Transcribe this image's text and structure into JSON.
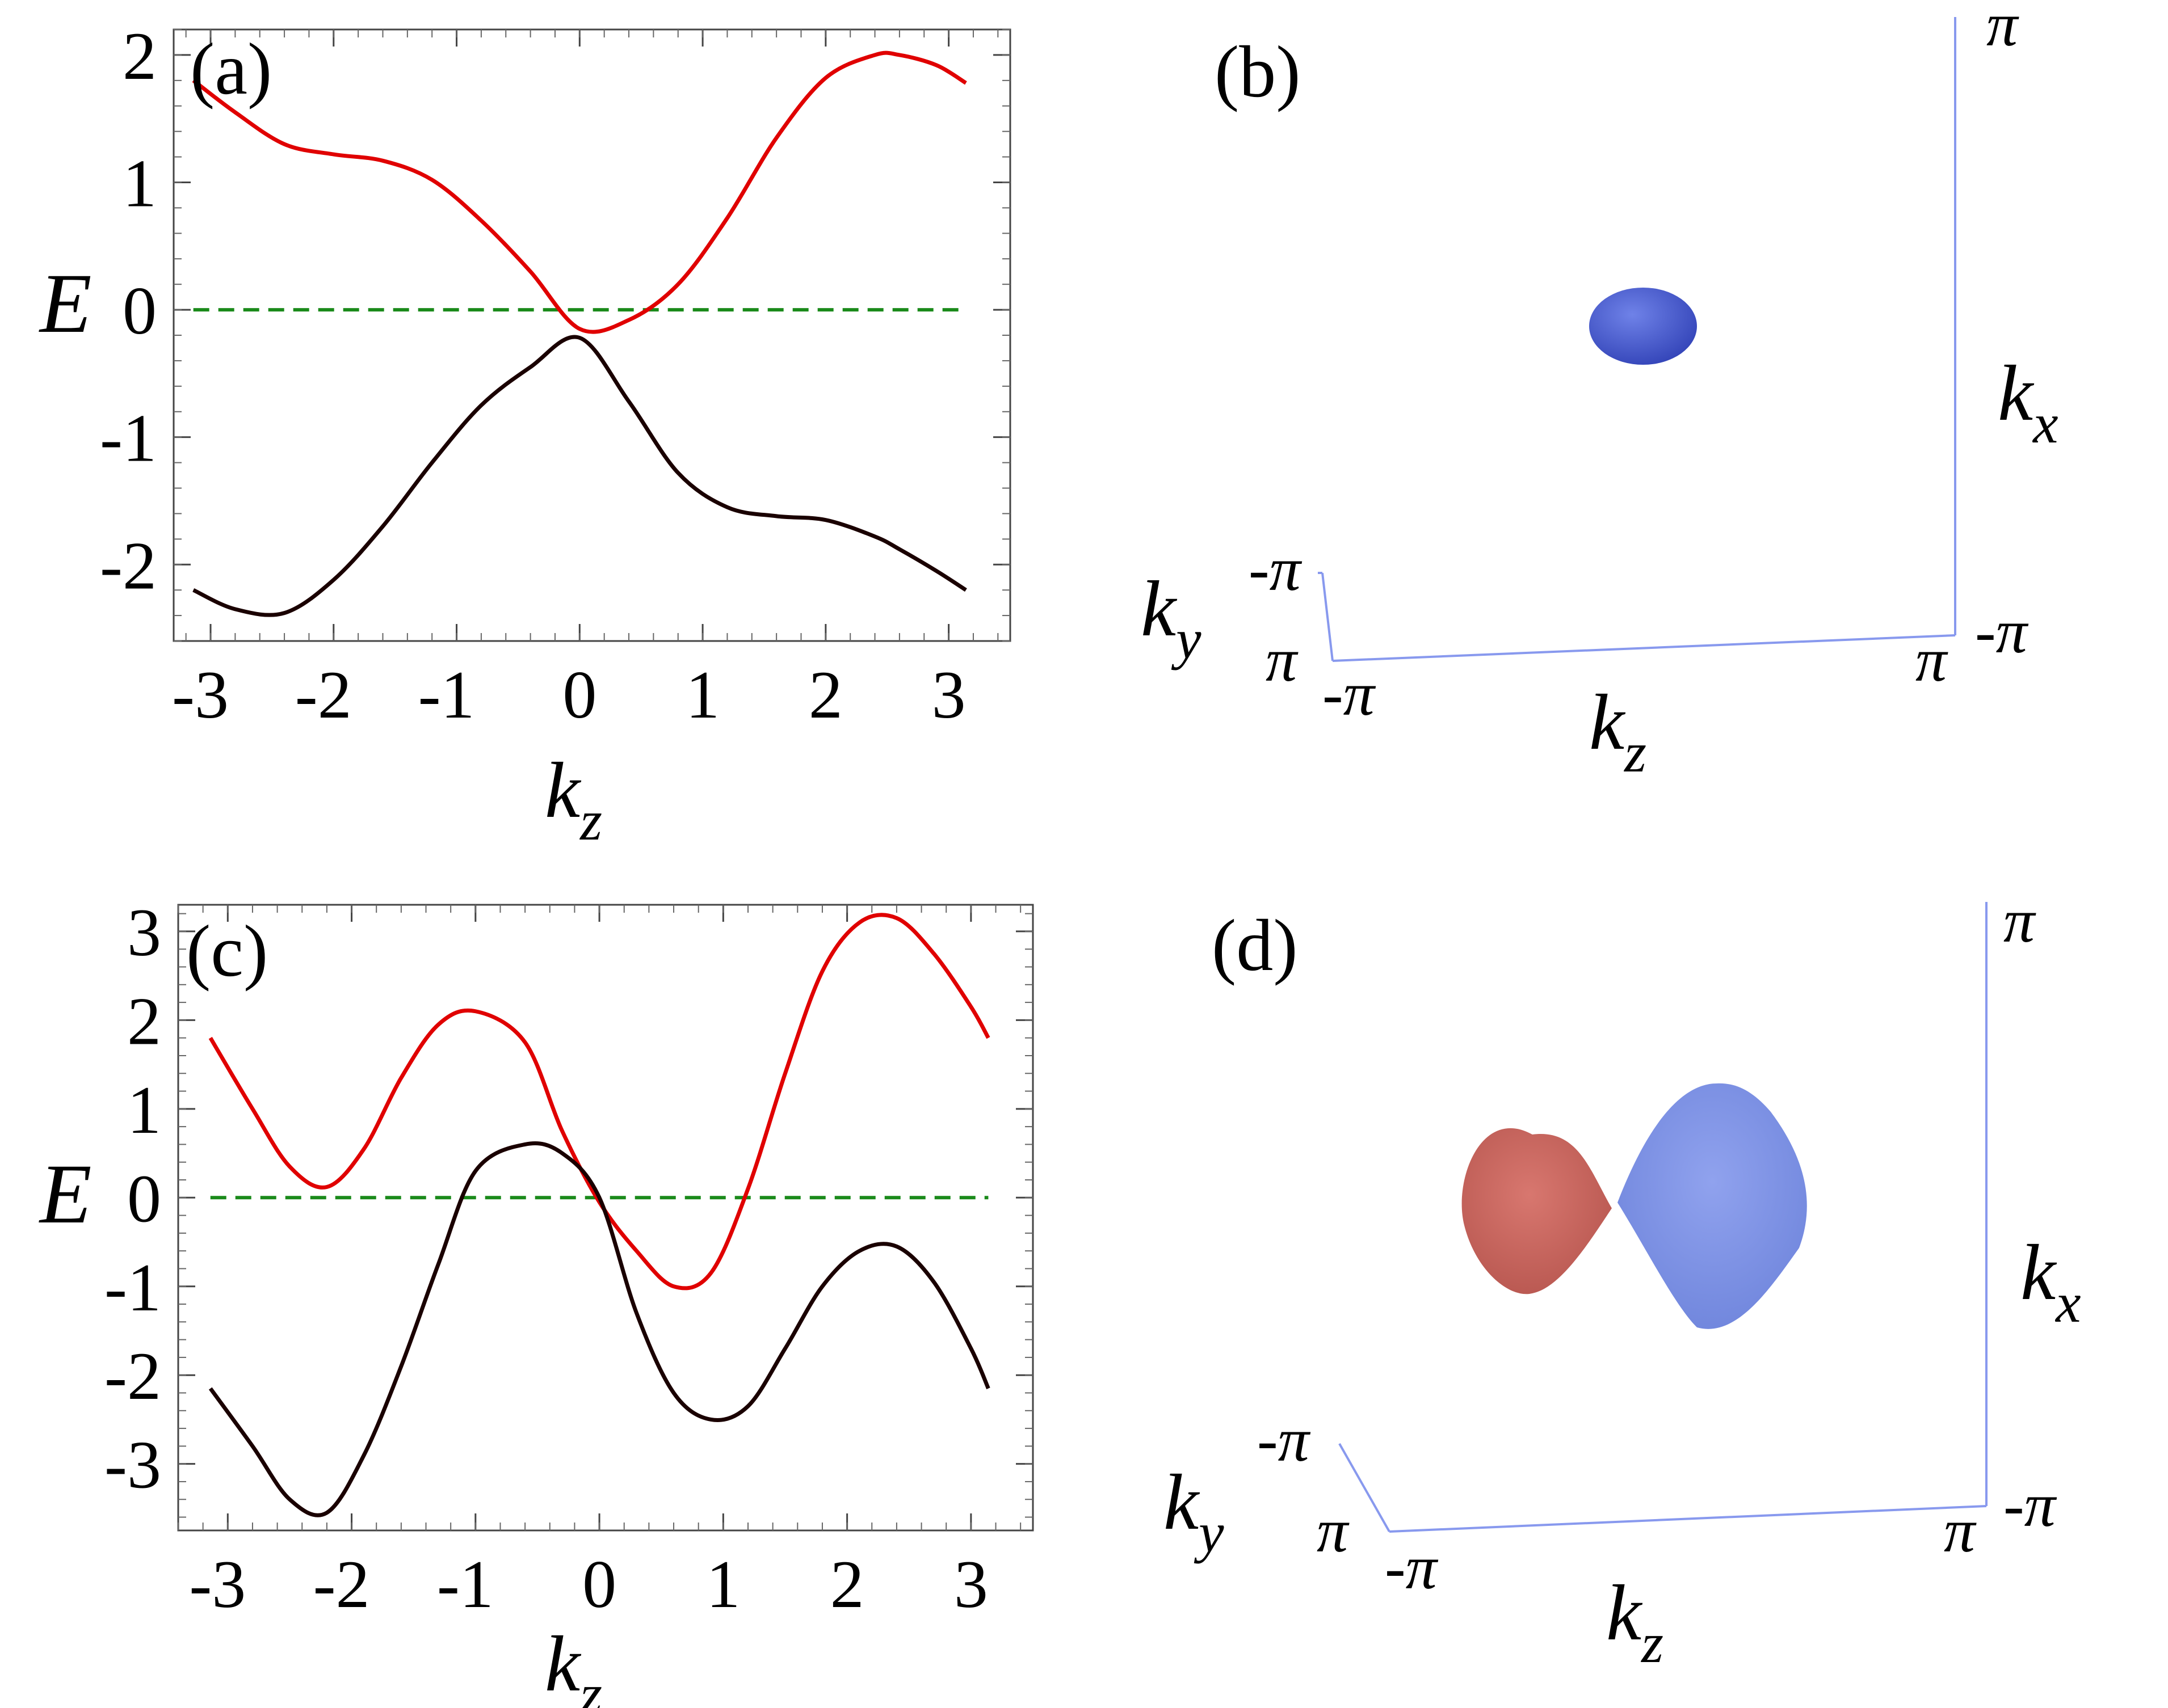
{
  "panels": {
    "a": {
      "label": "(a)"
    },
    "b": {
      "label": "(b)"
    },
    "c": {
      "label": "(c)"
    },
    "d": {
      "label": "(d)"
    }
  },
  "axes_labels": {
    "E": "E",
    "kz_base": "k",
    "kz_sub": "z",
    "kx_base": "k",
    "kx_sub": "x",
    "ky_base": "k",
    "ky_sub": "y",
    "pi": "π",
    "neg_pi": "-π"
  },
  "colors": {
    "upper_band": "#e00000",
    "lower_band": "#1a0000",
    "fermi_level": "#1a8a1a",
    "blue_surface": "#4a5fd0",
    "blue_surface_d": "#7c8fe4",
    "red_surface": "#cf6a62",
    "box_axis": "#8899ee"
  },
  "chart_data": [
    {
      "type": "line",
      "panel": "(a)",
      "xlabel": "kz",
      "ylabel": "E",
      "xlim": [
        -3.3,
        3.5
      ],
      "ylim": [
        -2.6,
        2.2
      ],
      "xticks": [
        "-3",
        "-2",
        "-1",
        "0",
        "1",
        "2",
        "3"
      ],
      "yticks": [
        "-2",
        "-1",
        "0",
        "1",
        "2"
      ],
      "x": [
        -3.14,
        -2.8,
        -2.4,
        -2.0,
        -1.6,
        -1.2,
        -0.8,
        -0.4,
        0.0,
        0.4,
        0.8,
        1.2,
        1.6,
        2.0,
        2.4,
        2.6,
        2.9,
        3.14
      ],
      "series": [
        {
          "color": "upper_band",
          "values": [
            1.8,
            1.55,
            1.3,
            1.22,
            1.17,
            1.02,
            0.7,
            0.3,
            -0.15,
            -0.08,
            0.2,
            0.72,
            1.35,
            1.82,
            2.0,
            2.0,
            1.92,
            1.78
          ]
        },
        {
          "color": "lower_band",
          "values": [
            -2.2,
            -2.35,
            -2.38,
            -2.12,
            -1.7,
            -1.2,
            -0.75,
            -0.45,
            -0.22,
            -0.72,
            -1.28,
            -1.55,
            -1.62,
            -1.65,
            -1.78,
            -1.88,
            -2.05,
            -2.2
          ]
        }
      ],
      "hlines": [
        {
          "y": 0,
          "style": "dashed",
          "color": "fermi_level"
        }
      ]
    },
    {
      "type": "line",
      "panel": "(c)",
      "xlabel": "kz",
      "ylabel": "E",
      "xlim": [
        -3.4,
        3.5
      ],
      "ylim": [
        -3.75,
        3.3
      ],
      "xticks": [
        "-3",
        "-2",
        "-1",
        "0",
        "1",
        "2",
        "3"
      ],
      "yticks": [
        "-3",
        "-2",
        "-1",
        "0",
        "1",
        "2",
        "3"
      ],
      "x": [
        -3.14,
        -2.8,
        -2.5,
        -2.2,
        -1.9,
        -1.6,
        -1.3,
        -1.0,
        -0.6,
        -0.3,
        0.0,
        0.3,
        0.6,
        0.9,
        1.2,
        1.5,
        1.8,
        2.1,
        2.4,
        2.7,
        3.0,
        3.14
      ],
      "series": [
        {
          "color": "upper_band",
          "values": [
            1.8,
            1.0,
            0.35,
            0.12,
            0.55,
            1.35,
            1.95,
            2.1,
            1.75,
            0.75,
            -0.05,
            -0.6,
            -1.0,
            -0.85,
            0.1,
            1.4,
            2.55,
            3.1,
            3.15,
            2.75,
            2.15,
            1.8
          ]
        },
        {
          "color": "lower_band",
          "values": [
            -2.15,
            -2.8,
            -3.4,
            -3.55,
            -2.9,
            -1.9,
            -0.75,
            0.3,
            0.6,
            0.5,
            0.0,
            -1.3,
            -2.2,
            -2.5,
            -2.35,
            -1.7,
            -1.0,
            -0.6,
            -0.55,
            -0.95,
            -1.7,
            -2.15
          ]
        }
      ],
      "hlines": [
        {
          "y": 0,
          "style": "dashed",
          "color": "fermi_level"
        }
      ]
    }
  ]
}
